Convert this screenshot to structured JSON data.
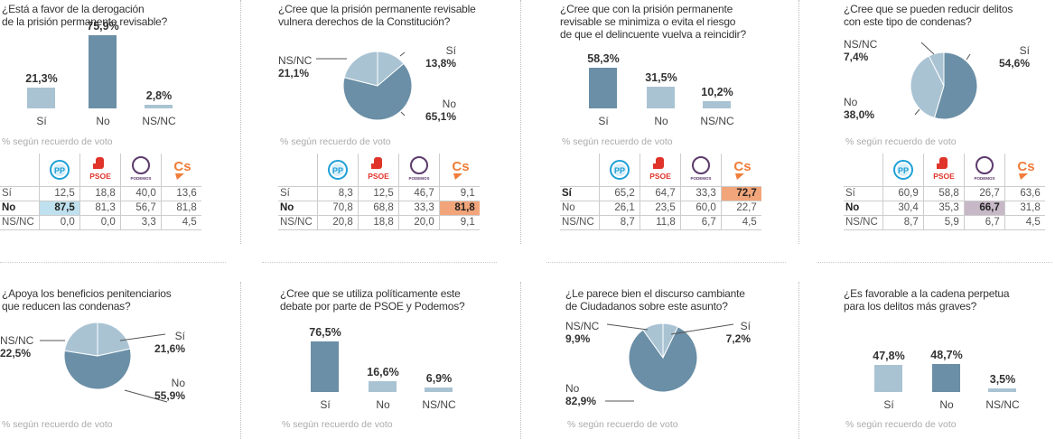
{
  "colors": {
    "dark": "#6a8fa6",
    "light": "#a9c3d3",
    "pp_highlight": "#bfe0ee",
    "cs_highlight": "#f2a57a",
    "podemos_highlight": "#c7b8c8",
    "pp": "#1ea0d6",
    "psoe": "#e0342a",
    "podemos": "#5c3a6c",
    "cs": "#f07d3a"
  },
  "note_label": "% según recuerdo de voto",
  "parties": [
    {
      "id": "pp",
      "name": "PP"
    },
    {
      "id": "psoe",
      "name": "PSOE"
    },
    {
      "id": "podemos",
      "name": "PODEMOS"
    },
    {
      "id": "cs",
      "name": "Cs"
    }
  ],
  "chart_data": [
    {
      "type": "bar",
      "title": "¿Está a favor de la derogación de la prisión permanente revisable?",
      "title_lines": [
        "¿Está a favor de la derogación",
        "de la prisión permanente revisable?"
      ],
      "categories": [
        "Sí",
        "No",
        "NS/NC"
      ],
      "values": [
        21.3,
        75.9,
        2.8
      ],
      "labels": [
        "21,3%",
        "75,9%",
        "2,8%"
      ],
      "highlight": [
        false,
        true,
        false
      ],
      "table": {
        "rows": [
          {
            "label": "Sí",
            "values": [
              "12,5",
              "18,8",
              "40,0",
              "13,6"
            ],
            "bold": false
          },
          {
            "label": "No",
            "values": [
              "87,5",
              "81,3",
              "56,7",
              "81,8"
            ],
            "bold": true
          },
          {
            "label": "NS/NC",
            "values": [
              "0,0",
              "0,0",
              "3,3",
              "4,5"
            ],
            "bold": false
          }
        ],
        "highlight_cell": {
          "row": 1,
          "col": 0,
          "color": "pp_highlight"
        }
      }
    },
    {
      "type": "pie",
      "title": "¿Cree que la prisión permanente revisable vulnera derechos de la Constitución?",
      "title_lines": [
        "¿Cree que la prisión permanente revisable",
        "vulnera derechos de la Constitución?"
      ],
      "categories": [
        "Sí",
        "No",
        "NS/NC"
      ],
      "values": [
        13.8,
        65.1,
        21.1
      ],
      "labels": [
        "13,8%",
        "65,1%",
        "21,1%"
      ],
      "highlight": [
        false,
        true,
        false
      ],
      "table": {
        "rows": [
          {
            "label": "Sí",
            "values": [
              "8,3",
              "12,5",
              "46,7",
              "9,1"
            ],
            "bold": false
          },
          {
            "label": "No",
            "values": [
              "70,8",
              "68,8",
              "33,3",
              "81,8"
            ],
            "bold": true
          },
          {
            "label": "NS/NC",
            "values": [
              "20,8",
              "18,8",
              "20,0",
              "9,1"
            ],
            "bold": false
          }
        ],
        "highlight_cell": {
          "row": 1,
          "col": 3,
          "color": "cs_highlight"
        }
      }
    },
    {
      "type": "bar",
      "title": "¿Cree que con la prisión permanente revisable se minimiza o evita el riesgo de que el delincuente vuelva a reincidir?",
      "title_lines": [
        "¿Cree que con la prisión permanente",
        "revisable se minimiza o evita el riesgo",
        "de que el delincuente vuelva a reincidir?"
      ],
      "categories": [
        "Sí",
        "No",
        "NS/NC"
      ],
      "values": [
        58.3,
        31.5,
        10.2
      ],
      "labels": [
        "58,3%",
        "31,5%",
        "10,2%"
      ],
      "highlight": [
        true,
        false,
        false
      ],
      "table": {
        "rows": [
          {
            "label": "Sí",
            "values": [
              "65,2",
              "64,7",
              "33,3",
              "72,7"
            ],
            "bold": true
          },
          {
            "label": "No",
            "values": [
              "26,1",
              "23,5",
              "60,0",
              "22,7"
            ],
            "bold": false
          },
          {
            "label": "NS/NC",
            "values": [
              "8,7",
              "11,8",
              "6,7",
              "4,5"
            ],
            "bold": false
          }
        ],
        "highlight_cell": {
          "row": 0,
          "col": 3,
          "color": "cs_highlight"
        }
      }
    },
    {
      "type": "pie",
      "title": "¿Cree que se pueden reducir delitos con este tipo de condenas?",
      "title_lines": [
        "¿Cree que se pueden reducir delitos",
        "con este tipo de condenas?"
      ],
      "categories": [
        "Sí",
        "No",
        "NS/NC"
      ],
      "values": [
        54.6,
        38.0,
        7.4
      ],
      "labels": [
        "54,6%",
        "38,0%",
        "7,4%"
      ],
      "highlight": [
        true,
        false,
        false
      ],
      "table": {
        "rows": [
          {
            "label": "Sí",
            "values": [
              "60,9",
              "58,8",
              "26,7",
              "63,6"
            ],
            "bold": false
          },
          {
            "label": "No",
            "values": [
              "30,4",
              "35,3",
              "66,7",
              "31,8"
            ],
            "bold": true
          },
          {
            "label": "NS/NC",
            "values": [
              "8,7",
              "5,9",
              "6,7",
              "4,5"
            ],
            "bold": false
          }
        ],
        "highlight_cell": {
          "row": 1,
          "col": 2,
          "color": "podemos_highlight"
        }
      }
    },
    {
      "type": "pie",
      "title": "¿Apoya los beneficios penitenciarios que reducen las condenas?",
      "title_lines": [
        "¿Apoya los beneficios penitenciarios",
        "que reducen las condenas?"
      ],
      "categories": [
        "Sí",
        "No",
        "NS/NC"
      ],
      "values": [
        21.6,
        55.9,
        22.5
      ],
      "labels": [
        "21,6%",
        "55,9%",
        "22,5%"
      ],
      "highlight": [
        false,
        true,
        false
      ]
    },
    {
      "type": "bar",
      "title": "¿Cree que se utiliza políticamente este debate por parte de PSOE y Podemos?",
      "title_lines": [
        "¿Cree que se utiliza políticamente este",
        "debate por parte de PSOE y Podemos?"
      ],
      "categories": [
        "Sí",
        "No",
        "NS/NC"
      ],
      "values": [
        76.5,
        16.6,
        6.9
      ],
      "labels": [
        "76,5%",
        "16,6%",
        "6,9%"
      ],
      "highlight": [
        true,
        false,
        false
      ]
    },
    {
      "type": "pie",
      "title": "¿Le parece bien el discurso cambiante de Ciudadanos sobre este asunto?",
      "title_lines": [
        "¿Le parece bien el discurso cambiante",
        "de Ciudadanos sobre este asunto?"
      ],
      "categories": [
        "Sí",
        "No",
        "NS/NC"
      ],
      "values": [
        7.2,
        82.9,
        9.9
      ],
      "labels": [
        "7,2%",
        "82,9%",
        "9,9%"
      ],
      "highlight": [
        false,
        true,
        false
      ]
    },
    {
      "type": "bar",
      "title": "¿Es favorable a la cadena perpetua para los delitos más graves?",
      "title_lines": [
        "¿Es favorable a la cadena perpetua",
        "para los delitos más graves?"
      ],
      "categories": [
        "Sí",
        "No",
        "NS/NC"
      ],
      "values": [
        47.8,
        48.7,
        3.5
      ],
      "labels": [
        "47,8%",
        "48,7%",
        "3,5%"
      ],
      "highlight": [
        false,
        true,
        false
      ]
    }
  ]
}
